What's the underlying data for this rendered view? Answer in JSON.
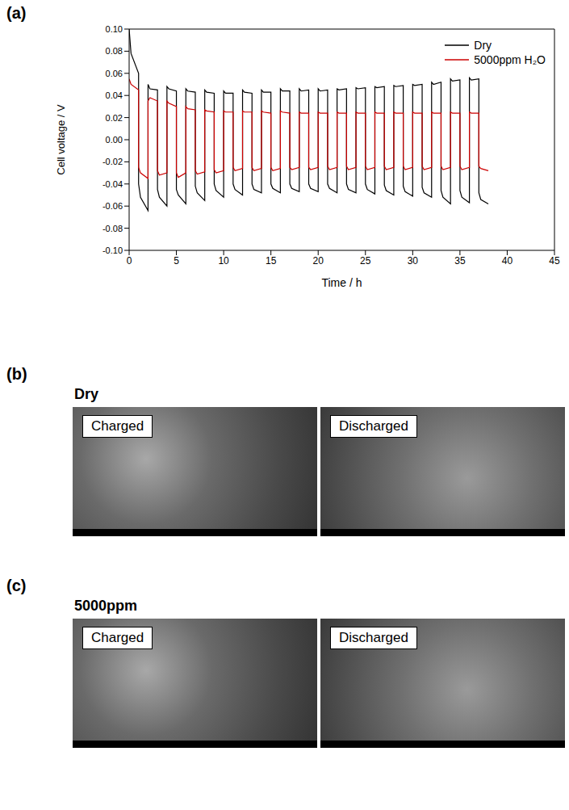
{
  "chart_data": {
    "type": "line",
    "panel_label": "(a)",
    "x_label": "Time / h",
    "y_label": "Cell voltage / V",
    "xlim": [
      0,
      45
    ],
    "xticks": [
      0,
      5,
      10,
      15,
      20,
      25,
      30,
      35,
      40,
      45
    ],
    "ylim": [
      -0.1,
      0.1
    ],
    "yticks": [
      {
        "value": -0.1,
        "label": "-0.10"
      },
      {
        "value": -0.08,
        "label": "-0.08"
      },
      {
        "value": -0.06,
        "label": "-0.06"
      },
      {
        "value": -0.04,
        "label": "-0.04"
      },
      {
        "value": -0.02,
        "label": "-0.02"
      },
      {
        "value": 0,
        "label": "0.00"
      },
      {
        "value": 0.02,
        "label": "0.02"
      },
      {
        "value": 0.04,
        "label": "0.04"
      },
      {
        "value": 0.06,
        "label": "0.06"
      },
      {
        "value": 0.08,
        "label": "0.08"
      },
      {
        "value": 0.1,
        "label": "0.10"
      }
    ],
    "legend": "upper right",
    "x": [
      0,
      0.2,
      1,
      1,
      1.2,
      2,
      2,
      2.2,
      3,
      3,
      3.2,
      4,
      4,
      4.2,
      5,
      5,
      5.2,
      6,
      6,
      6.2,
      7,
      7,
      7.2,
      8,
      8,
      8.2,
      9,
      9,
      9.2,
      10,
      10,
      10.2,
      11,
      11,
      11.2,
      12,
      12,
      12.2,
      13,
      13,
      13.2,
      14,
      14,
      14.2,
      15,
      15,
      15.2,
      16,
      16,
      16.2,
      17,
      17,
      17.2,
      18,
      18,
      18.2,
      19,
      19,
      19.2,
      20,
      20,
      20.2,
      21,
      21,
      21.2,
      22,
      22,
      22.2,
      23,
      23,
      23.2,
      24,
      24,
      24.2,
      25,
      25,
      25.2,
      26,
      26,
      26.2,
      27,
      27,
      27.2,
      28,
      28,
      28.2,
      29,
      29,
      29.2,
      30,
      30,
      30.2,
      31,
      31,
      31.2,
      32,
      32,
      32.2,
      33,
      33,
      33.2,
      34,
      34,
      34.2,
      35,
      35,
      35.2,
      36,
      36,
      36.2,
      37,
      37,
      37.2,
      38
    ],
    "series": [
      {
        "name": "Dry",
        "color": "#000000",
        "values": [
          0.1,
          0.078,
          0.06,
          -0.04,
          -0.052,
          -0.064,
          0.05,
          0.046,
          0.045,
          -0.045,
          -0.052,
          -0.06,
          0.048,
          0.046,
          0.044,
          -0.045,
          -0.05,
          -0.058,
          0.046,
          0.044,
          0.043,
          -0.042,
          -0.048,
          -0.055,
          0.045,
          0.043,
          0.042,
          -0.04,
          -0.046,
          -0.052,
          0.044,
          0.042,
          0.042,
          -0.04,
          -0.045,
          -0.05,
          0.045,
          0.043,
          0.042,
          -0.04,
          -0.045,
          -0.048,
          0.045,
          0.043,
          0.043,
          -0.04,
          -0.044,
          -0.048,
          0.046,
          0.044,
          0.044,
          -0.04,
          -0.044,
          -0.047,
          0.046,
          0.044,
          0.045,
          -0.04,
          -0.044,
          -0.047,
          0.046,
          0.044,
          0.045,
          -0.04,
          -0.044,
          -0.048,
          0.046,
          0.045,
          0.046,
          -0.04,
          -0.045,
          -0.048,
          0.047,
          0.046,
          0.047,
          -0.04,
          -0.045,
          -0.049,
          0.048,
          0.047,
          0.048,
          -0.041,
          -0.046,
          -0.05,
          0.049,
          0.048,
          0.049,
          -0.042,
          -0.047,
          -0.051,
          0.05,
          0.049,
          0.05,
          -0.043,
          -0.048,
          -0.052,
          0.052,
          0.05,
          0.052,
          -0.046,
          -0.052,
          -0.058,
          0.055,
          0.053,
          0.054,
          -0.046,
          -0.052,
          -0.057,
          0.056,
          0.054,
          0.055,
          -0.048,
          -0.054,
          -0.058
        ]
      },
      {
        "name": "5000ppm H₂O",
        "color": "#cc0000",
        "values": [
          0.055,
          0.05,
          0.045,
          -0.025,
          -0.03,
          -0.035,
          0.035,
          0.038,
          0.035,
          -0.028,
          -0.032,
          -0.03,
          0.035,
          0.033,
          0.03,
          -0.03,
          -0.034,
          -0.03,
          0.03,
          0.028,
          0.027,
          -0.028,
          -0.031,
          -0.029,
          0.027,
          0.026,
          0.025,
          -0.027,
          -0.03,
          -0.028,
          0.026,
          0.025,
          0.025,
          -0.025,
          -0.028,
          -0.026,
          0.026,
          0.025,
          0.025,
          -0.025,
          -0.028,
          -0.026,
          0.026,
          0.025,
          0.024,
          -0.025,
          -0.028,
          -0.026,
          0.026,
          0.025,
          0.024,
          -0.025,
          -0.027,
          -0.025,
          0.025,
          0.024,
          0.024,
          -0.025,
          -0.027,
          -0.025,
          0.025,
          0.024,
          0.024,
          -0.024,
          -0.027,
          -0.025,
          0.025,
          0.024,
          0.024,
          -0.024,
          -0.027,
          -0.025,
          0.025,
          0.024,
          0.024,
          -0.024,
          -0.027,
          -0.025,
          0.025,
          0.024,
          0.024,
          -0.024,
          -0.027,
          -0.025,
          0.025,
          0.024,
          0.024,
          -0.024,
          -0.027,
          -0.025,
          0.025,
          0.024,
          0.024,
          -0.024,
          -0.027,
          -0.025,
          0.025,
          0.024,
          0.024,
          -0.024,
          -0.027,
          -0.025,
          0.025,
          0.024,
          0.024,
          -0.024,
          -0.027,
          -0.025,
          0.025,
          0.024,
          0.024,
          -0.024,
          -0.026,
          -0.028
        ]
      }
    ]
  },
  "image_panels": [
    {
      "label": "(b)",
      "title": "Dry",
      "images": [
        "Charged",
        "Discharged"
      ]
    },
    {
      "label": "(c)",
      "title": "5000ppm",
      "images": [
        "Charged",
        "Discharged"
      ]
    }
  ]
}
